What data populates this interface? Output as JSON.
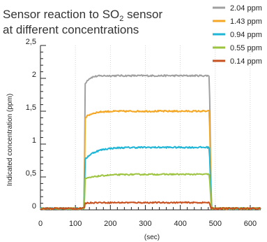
{
  "chart_data": {
    "type": "line",
    "title_line1_prefix": "Sensor reaction to SO",
    "title_subscript": "2",
    "title_line1_suffix": " sensor",
    "title_line2": "at different concentrations",
    "xlabel": "(sec)",
    "ylabel": "Indicated concentration (ppm)",
    "x_ticks": [
      "0",
      "100",
      "200",
      "300",
      "400",
      "500",
      "600"
    ],
    "y_ticks": [
      "0",
      "0,5",
      "1",
      "1,5",
      "2",
      "2,5"
    ],
    "xlim": [
      0,
      630
    ],
    "ylim": [
      0,
      2.5
    ],
    "legend_position": "top-right",
    "series": [
      {
        "name": "2.04 ppm",
        "color": "#a0a0a0",
        "start": 0.0,
        "step_value": 1.92,
        "plateau": 2.04,
        "tau": 12,
        "noise": 0.012
      },
      {
        "name": "1.43 ppm",
        "color": "#f5a623",
        "start": 0.0,
        "step_value": 1.4,
        "plateau": 1.5,
        "tau": 20,
        "noise": 0.012
      },
      {
        "name": "0.94 ppm",
        "color": "#1fb5d6",
        "start": 0.0,
        "step_value": 0.77,
        "plateau": 0.95,
        "tau": 30,
        "noise": 0.012
      },
      {
        "name": "0.55 ppm",
        "color": "#9dc43f",
        "start": 0.0,
        "step_value": 0.47,
        "plateau": 0.54,
        "tau": 40,
        "noise": 0.01
      },
      {
        "name": "0.14 ppm",
        "color": "#c8501e",
        "start": 0.0,
        "step_value": 0.1,
        "plateau": 0.11,
        "tau": 10,
        "noise": 0.01
      }
    ],
    "rise_time": 125,
    "fall_time": 483
  }
}
